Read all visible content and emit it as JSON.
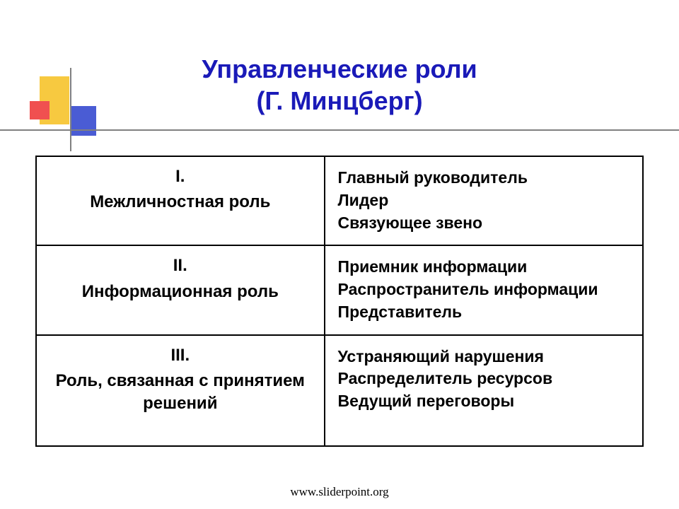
{
  "title": {
    "line1": "Управленческие роли",
    "line2": "(Г. Минцберг)",
    "color": "#1a1ab8",
    "fontsize": 36
  },
  "decoration": {
    "yellow": "#f7c940",
    "red": "#f05050",
    "blue": "#4a5cd4",
    "line_color": "#808080"
  },
  "table": {
    "border_color": "#000000",
    "text_color": "#000000",
    "left_fontsize": 24,
    "right_fontsize": 23,
    "rows": [
      {
        "numeral": "I.",
        "label": "Межличностная роль",
        "items": [
          "Главный руководитель",
          "Лидер",
          "Связующее звено"
        ]
      },
      {
        "numeral": "II.",
        "label": "Информационная роль",
        "items": [
          "Приемник информации",
          "Распространитель информации",
          "Представитель"
        ]
      },
      {
        "numeral": "III.",
        "label": "Роль, связанная с принятием решений",
        "items": [
          "Устраняющий нарушения",
          "Распределитель ресурсов",
          "Ведущий переговоры"
        ]
      }
    ]
  },
  "footer": "www.sliderpoint.org"
}
